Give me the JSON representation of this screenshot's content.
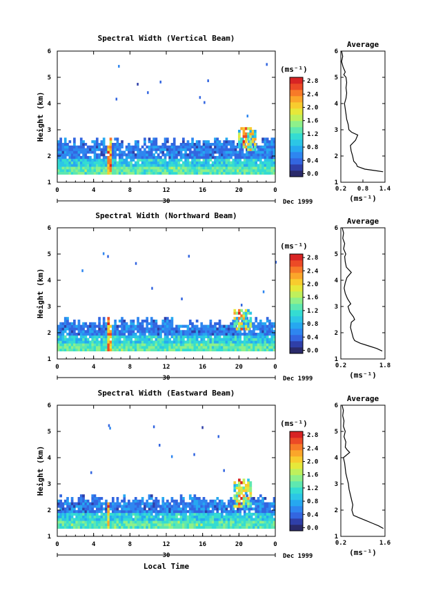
{
  "figure": {
    "xlabel": "Local Time",
    "date_label": "Dec 1999",
    "day_label": "30",
    "colorbar_unit": "(ms⁻¹)",
    "colors": {
      "scale": [
        "#2a2a6a",
        "#2f3fa8",
        "#3366e0",
        "#2e86f0",
        "#26a8f0",
        "#2cc6e6",
        "#34dcd2",
        "#5ee8b0",
        "#8ef08a",
        "#bff05c",
        "#e6e83a",
        "#f8cc2e",
        "#fba62a",
        "#f77a28",
        "#ec4a26",
        "#d82424"
      ]
    }
  },
  "chart_data": [
    {
      "type": "heatmap",
      "title": "Spectral Width (Vertical Beam)",
      "ylabel": "Height (km)",
      "xlim": [
        0,
        24
      ],
      "ylim": [
        1,
        6
      ],
      "x_ticks": [
        "0",
        "4",
        "8",
        "12",
        "16",
        "20",
        "0"
      ],
      "y_ticks": [
        "1",
        "2",
        "3",
        "4",
        "5",
        "6"
      ],
      "colorbar": {
        "ticks": [
          "0.0",
          "0.4",
          "0.8",
          "1.2",
          "1.6",
          "2.0",
          "2.4",
          "2.8"
        ],
        "range": [
          0,
          3.0
        ]
      },
      "region": {
        "top_height": 2.5,
        "event_time": 20.5,
        "event_top": 3.1,
        "spike_time": 5.6
      },
      "average": {
        "title": "Average",
        "xlabel": "(ms⁻¹)",
        "x_ticks": [
          "0.2",
          "0.8",
          "1.4"
        ],
        "xlim": [
          0.2,
          1.4
        ],
        "ylim": [
          1,
          6
        ],
        "y_ticks": [
          "1",
          "2",
          "3",
          "4",
          "5",
          "6"
        ],
        "profile": [
          [
            1.4,
            1.35
          ],
          [
            1.45,
            1.1
          ],
          [
            1.5,
            0.85
          ],
          [
            1.6,
            0.65
          ],
          [
            1.7,
            0.62
          ],
          [
            1.8,
            0.55
          ],
          [
            2.0,
            0.52
          ],
          [
            2.2,
            0.48
          ],
          [
            2.4,
            0.46
          ],
          [
            2.6,
            0.6
          ],
          [
            2.8,
            0.66
          ],
          [
            2.9,
            0.5
          ],
          [
            3.0,
            0.42
          ],
          [
            3.2,
            0.4
          ],
          [
            3.4,
            0.36
          ],
          [
            3.6,
            0.34
          ],
          [
            3.8,
            0.32
          ],
          [
            4.0,
            0.3
          ],
          [
            4.2,
            0.34
          ],
          [
            4.4,
            0.36
          ],
          [
            4.6,
            0.34
          ],
          [
            4.8,
            0.36
          ],
          [
            5.0,
            0.34
          ],
          [
            5.1,
            0.28
          ],
          [
            5.2,
            0.32
          ],
          [
            5.4,
            0.26
          ],
          [
            5.6,
            0.22
          ],
          [
            5.8,
            0.25
          ],
          [
            6.0,
            0.22
          ]
        ]
      }
    },
    {
      "type": "heatmap",
      "title": "Spectral Width (Northward Beam)",
      "ylabel": "Height (km)",
      "xlim": [
        0,
        24
      ],
      "ylim": [
        1,
        6
      ],
      "x_ticks": [
        "0",
        "4",
        "8",
        "12",
        "16",
        "20",
        "0"
      ],
      "y_ticks": [
        "1",
        "2",
        "3",
        "4",
        "5",
        "6"
      ],
      "colorbar": {
        "ticks": [
          "0.0",
          "0.4",
          "0.8",
          "1.2",
          "1.6",
          "2.0",
          "2.4",
          "2.8"
        ],
        "range": [
          0,
          3.0
        ]
      },
      "region": {
        "top_height": 2.4,
        "event_time": 20.0,
        "event_top": 2.9,
        "spike_time": 5.6
      },
      "average": {
        "title": "Average",
        "xlabel": "(ms⁻¹)",
        "x_ticks": [
          "0.2",
          "1.8"
        ],
        "xlim": [
          0.2,
          1.8
        ],
        "ylim": [
          1,
          6
        ],
        "y_ticks": [
          "1",
          "2",
          "3",
          "4",
          "5",
          "6"
        ],
        "profile": [
          [
            1.3,
            1.7
          ],
          [
            1.4,
            1.5
          ],
          [
            1.5,
            1.2
          ],
          [
            1.6,
            0.9
          ],
          [
            1.7,
            0.7
          ],
          [
            1.8,
            0.65
          ],
          [
            2.0,
            0.6
          ],
          [
            2.2,
            0.55
          ],
          [
            2.4,
            0.58
          ],
          [
            2.5,
            0.7
          ],
          [
            2.6,
            0.66
          ],
          [
            2.8,
            0.52
          ],
          [
            3.0,
            0.46
          ],
          [
            3.1,
            0.56
          ],
          [
            3.2,
            0.5
          ],
          [
            3.3,
            0.44
          ],
          [
            3.5,
            0.36
          ],
          [
            3.7,
            0.32
          ],
          [
            3.9,
            0.36
          ],
          [
            4.1,
            0.42
          ],
          [
            4.3,
            0.58
          ],
          [
            4.5,
            0.4
          ],
          [
            4.7,
            0.36
          ],
          [
            4.9,
            0.34
          ],
          [
            5.0,
            0.38
          ],
          [
            5.2,
            0.3
          ],
          [
            5.4,
            0.34
          ],
          [
            5.6,
            0.27
          ],
          [
            5.8,
            0.3
          ],
          [
            6.0,
            0.25
          ]
        ]
      }
    },
    {
      "type": "heatmap",
      "title": "Spectral Width (Eastward Beam)",
      "ylabel": "Height (km)",
      "xlim": [
        0,
        24
      ],
      "ylim": [
        1,
        6
      ],
      "x_ticks": [
        "0",
        "4",
        "8",
        "12",
        "16",
        "20",
        "0"
      ],
      "y_ticks": [
        "1",
        "2",
        "3",
        "4",
        "5",
        "6"
      ],
      "colorbar": {
        "ticks": [
          "0.0",
          "0.4",
          "0.8",
          "1.2",
          "1.6",
          "2.0",
          "2.4",
          "2.8"
        ],
        "range": [
          0,
          3.0
        ]
      },
      "region": {
        "top_height": 2.4,
        "event_time": 20.0,
        "event_top": 3.2,
        "spike_time": 5.5
      },
      "average": {
        "title": "Average",
        "xlabel": "(ms⁻¹)",
        "x_ticks": [
          "0.2",
          "1.6"
        ],
        "xlim": [
          0.2,
          1.6
        ],
        "ylim": [
          1,
          6
        ],
        "y_ticks": [
          "1",
          "2",
          "3",
          "4",
          "5",
          "6"
        ],
        "profile": [
          [
            1.3,
            1.55
          ],
          [
            1.4,
            1.4
          ],
          [
            1.5,
            1.2
          ],
          [
            1.6,
            1.0
          ],
          [
            1.7,
            0.8
          ],
          [
            1.8,
            0.6
          ],
          [
            2.0,
            0.55
          ],
          [
            2.2,
            0.58
          ],
          [
            2.4,
            0.54
          ],
          [
            2.6,
            0.5
          ],
          [
            2.8,
            0.46
          ],
          [
            3.0,
            0.44
          ],
          [
            3.2,
            0.4
          ],
          [
            3.4,
            0.36
          ],
          [
            3.6,
            0.34
          ],
          [
            3.8,
            0.32
          ],
          [
            4.0,
            0.28
          ],
          [
            4.2,
            0.48
          ],
          [
            4.3,
            0.4
          ],
          [
            4.4,
            0.34
          ],
          [
            4.6,
            0.36
          ],
          [
            4.8,
            0.3
          ],
          [
            5.0,
            0.34
          ],
          [
            5.2,
            0.28
          ],
          [
            5.4,
            0.3
          ],
          [
            5.6,
            0.26
          ],
          [
            5.8,
            0.28
          ],
          [
            6.0,
            0.24
          ]
        ]
      }
    }
  ]
}
